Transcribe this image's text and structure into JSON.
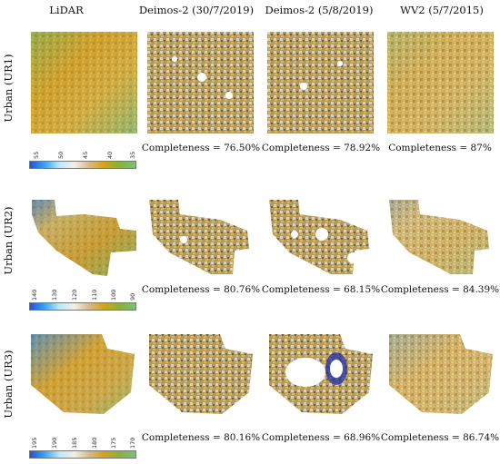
{
  "columns": [
    "LiDAR",
    "Deimos-2 (30/7/2019)",
    "Deimos-2 (5/8/2019)",
    "WV2 (5/7/2015)"
  ],
  "rows": [
    {
      "label": "Urban (UR1)",
      "completeness": [
        "Completeness = 76.50%",
        "Completeness = 78.92%",
        "Completeness = 87%"
      ],
      "colorbar_ticks": [
        "55",
        "50",
        "45",
        "40",
        "35"
      ]
    },
    {
      "label": "Urban (UR2)",
      "completeness": [
        "Completeness = 80.76%",
        "Completeness = 68.15%",
        "Completeness = 84.39%"
      ],
      "colorbar_ticks": [
        "140",
        "130",
        "120",
        "110",
        "100",
        "90"
      ]
    },
    {
      "label": "Urban (UR3)",
      "completeness": [
        "Completeness = 80.16%",
        "Completeness = 68.96%",
        "Completeness = 86.74%"
      ],
      "colorbar_ticks": [
        "195",
        "190",
        "185",
        "180",
        "175",
        "170"
      ]
    }
  ],
  "colors": {
    "blue": "#1f55d6",
    "cyan": "#3aa5f0",
    "beige": "#d9b98a",
    "ochre": "#d4a21c",
    "green": "#7cc07c",
    "void": "#ffffff"
  }
}
